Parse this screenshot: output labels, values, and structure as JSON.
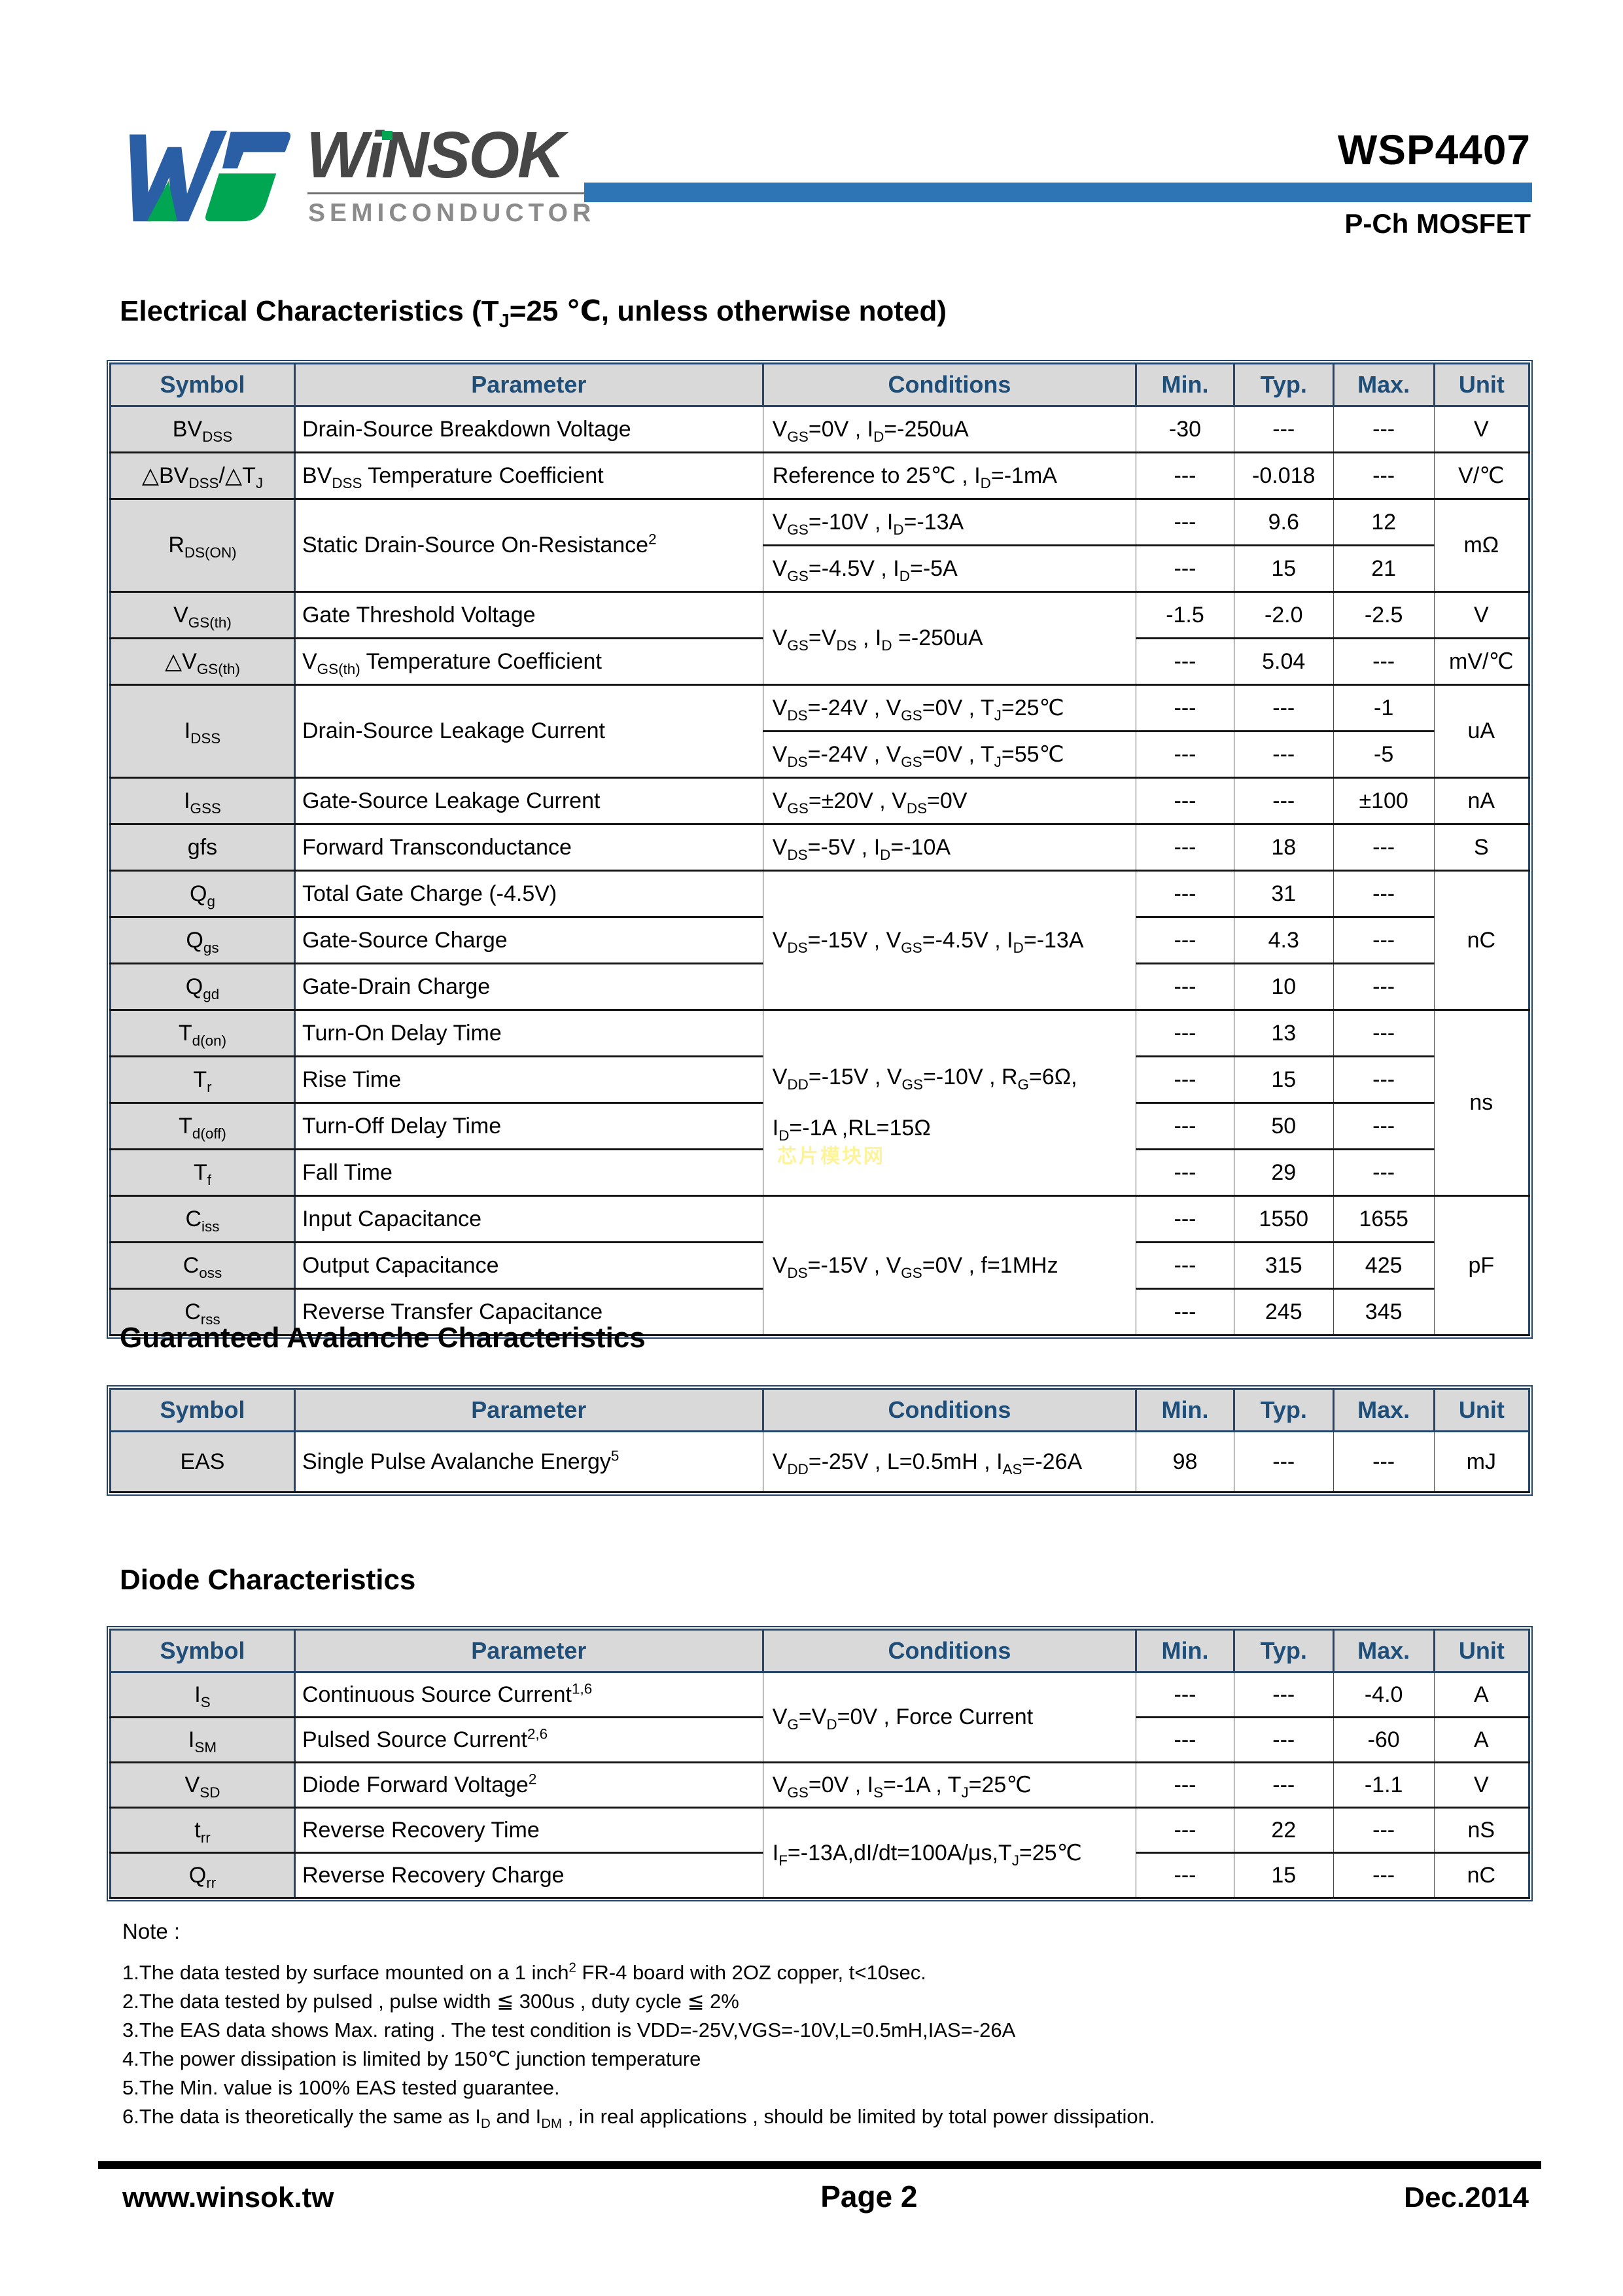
{
  "header": {
    "brand": "WiNSOK",
    "brand_sub": "SEMICONDUCTOR",
    "part_number": "WSP4407",
    "device_type": "P-Ch MOSFET",
    "accent_color": "#2e75b6",
    "logo_colors": {
      "blue": "#2b5fa5",
      "green": "#00a651"
    }
  },
  "watermark": {
    "text": "芯片模块网",
    "color": "#fdf39b"
  },
  "table_columns": [
    "Symbol",
    "Parameter",
    "Conditions",
    "Min.",
    "Typ.",
    "Max.",
    "Unit"
  ],
  "col_widths_pct": [
    13.0,
    33.0,
    26.3,
    6.9,
    7.0,
    7.1,
    6.7
  ],
  "electrical": {
    "title_html": "Electrical Characteristics (T<sub>J</sub>=25 ℃, unless otherwise noted)",
    "rows": [
      [
        {
          "h": "BV<sub>DSS</sub>",
          "cls": "c-sym"
        },
        {
          "h": "Drain-Source Breakdown Voltage",
          "cls": "c-par"
        },
        {
          "h": "V<sub>GS</sub>=0V , I<sub>D</sub>=-250uA",
          "cls": "c-con"
        },
        {
          "h": "-30",
          "cls": "c-num"
        },
        {
          "h": "---",
          "cls": "c-num"
        },
        {
          "h": "---",
          "cls": "c-num"
        },
        {
          "h": "V",
          "cls": "c-unit"
        }
      ],
      [
        {
          "h": "△BV<sub>DSS</sub>/△T<sub>J</sub>",
          "cls": "c-sym"
        },
        {
          "h": "BV<sub>DSS</sub> Temperature Coefficient",
          "cls": "c-par"
        },
        {
          "h": "Reference to 25℃ , I<sub>D</sub>=-1mA",
          "cls": "c-con"
        },
        {
          "h": "---",
          "cls": "c-num"
        },
        {
          "h": "-0.018",
          "cls": "c-num"
        },
        {
          "h": "---",
          "cls": "c-num"
        },
        {
          "h": "V/℃",
          "cls": "c-unit"
        }
      ],
      [
        {
          "h": "R<sub>DS(ON)</sub>",
          "cls": "c-sym",
          "rs": 2
        },
        {
          "h": "Static Drain-Source On-Resistance<sup>2</sup>",
          "cls": "c-par",
          "rs": 2
        },
        {
          "h": "V<sub>GS</sub>=-10V , I<sub>D</sub>=-13A",
          "cls": "c-con"
        },
        {
          "h": "---",
          "cls": "c-num"
        },
        {
          "h": "9.6",
          "cls": "c-num"
        },
        {
          "h": "12",
          "cls": "c-num"
        },
        {
          "h": "mΩ",
          "cls": "c-unit",
          "rs": 2
        }
      ],
      [
        {
          "h": "V<sub>GS</sub>=-4.5V , I<sub>D</sub>=-5A",
          "cls": "c-con"
        },
        {
          "h": "---",
          "cls": "c-num"
        },
        {
          "h": "15",
          "cls": "c-num"
        },
        {
          "h": "21",
          "cls": "c-num"
        }
      ],
      [
        {
          "h": "V<sub>GS(th)</sub>",
          "cls": "c-sym"
        },
        {
          "h": "Gate Threshold Voltage",
          "cls": "c-par"
        },
        {
          "h": "V<sub>GS</sub>=V<sub>DS</sub> , I<sub>D</sub> =-250uA",
          "cls": "c-con",
          "rs": 2
        },
        {
          "h": "-1.5",
          "cls": "c-num"
        },
        {
          "h": "-2.0",
          "cls": "c-num"
        },
        {
          "h": "-2.5",
          "cls": "c-num"
        },
        {
          "h": "V",
          "cls": "c-unit"
        }
      ],
      [
        {
          "h": "△V<sub>GS(th)</sub>",
          "cls": "c-sym"
        },
        {
          "h": "V<sub>GS(th)</sub> Temperature Coefficient",
          "cls": "c-par"
        },
        {
          "h": "---",
          "cls": "c-num"
        },
        {
          "h": "5.04",
          "cls": "c-num"
        },
        {
          "h": "---",
          "cls": "c-num"
        },
        {
          "h": "mV/℃",
          "cls": "c-unit"
        }
      ],
      [
        {
          "h": "I<sub>DSS</sub>",
          "cls": "c-sym",
          "rs": 2
        },
        {
          "h": "Drain-Source Leakage Current",
          "cls": "c-par",
          "rs": 2
        },
        {
          "h": "V<sub>DS</sub>=-24V , V<sub>GS</sub>=0V , T<sub>J</sub>=25℃",
          "cls": "c-con"
        },
        {
          "h": "---",
          "cls": "c-num"
        },
        {
          "h": "---",
          "cls": "c-num"
        },
        {
          "h": "-1",
          "cls": "c-num"
        },
        {
          "h": "uA",
          "cls": "c-unit",
          "rs": 2
        }
      ],
      [
        {
          "h": "V<sub>DS</sub>=-24V , V<sub>GS</sub>=0V , T<sub>J</sub>=55℃",
          "cls": "c-con"
        },
        {
          "h": "---",
          "cls": "c-num"
        },
        {
          "h": "---",
          "cls": "c-num"
        },
        {
          "h": "-5",
          "cls": "c-num"
        }
      ],
      [
        {
          "h": "I<sub>GSS</sub>",
          "cls": "c-sym"
        },
        {
          "h": "Gate-Source Leakage Current",
          "cls": "c-par"
        },
        {
          "h": "V<sub>GS</sub>=±20V , V<sub>DS</sub>=0V",
          "cls": "c-con"
        },
        {
          "h": "---",
          "cls": "c-num"
        },
        {
          "h": "---",
          "cls": "c-num"
        },
        {
          "h": "±100",
          "cls": "c-num"
        },
        {
          "h": "nA",
          "cls": "c-unit"
        }
      ],
      [
        {
          "h": "gfs",
          "cls": "c-sym"
        },
        {
          "h": "Forward Transconductance",
          "cls": "c-par"
        },
        {
          "h": "V<sub>DS</sub>=-5V , I<sub>D</sub>=-10A",
          "cls": "c-con"
        },
        {
          "h": "---",
          "cls": "c-num"
        },
        {
          "h": "18",
          "cls": "c-num"
        },
        {
          "h": "---",
          "cls": "c-num"
        },
        {
          "h": "S",
          "cls": "c-unit"
        }
      ],
      [
        {
          "h": "Q<sub>g</sub>",
          "cls": "c-sym"
        },
        {
          "h": "Total Gate Charge (-4.5V)",
          "cls": "c-par"
        },
        {
          "h": "V<sub>DS</sub>=-15V , V<sub>GS</sub>=-4.5V , I<sub>D</sub>=-13A",
          "cls": "c-con",
          "rs": 3
        },
        {
          "h": "---",
          "cls": "c-num"
        },
        {
          "h": "31",
          "cls": "c-num"
        },
        {
          "h": "---",
          "cls": "c-num"
        },
        {
          "h": "nC",
          "cls": "c-unit",
          "rs": 3
        }
      ],
      [
        {
          "h": "Q<sub>gs</sub>",
          "cls": "c-sym"
        },
        {
          "h": "Gate-Source Charge",
          "cls": "c-par"
        },
        {
          "h": "---",
          "cls": "c-num"
        },
        {
          "h": "4.3",
          "cls": "c-num"
        },
        {
          "h": "---",
          "cls": "c-num"
        }
      ],
      [
        {
          "h": "Q<sub>gd</sub>",
          "cls": "c-sym"
        },
        {
          "h": "Gate-Drain Charge",
          "cls": "c-par"
        },
        {
          "h": "---",
          "cls": "c-num"
        },
        {
          "h": "10",
          "cls": "c-num"
        },
        {
          "h": "---",
          "cls": "c-num"
        }
      ],
      [
        {
          "h": "T<sub>d(on)</sub>",
          "cls": "c-sym"
        },
        {
          "h": "Turn-On Delay Time",
          "cls": "c-par"
        },
        {
          "h": "V<sub>DD</sub>=-15V , V<sub>GS</sub>=-10V , R<sub>G</sub>=6Ω,<br><br>I<sub>D</sub>=-1A ,RL=15Ω",
          "cls": "c-con",
          "rs": 4
        },
        {
          "h": "---",
          "cls": "c-num"
        },
        {
          "h": "13",
          "cls": "c-num"
        },
        {
          "h": "---",
          "cls": "c-num"
        },
        {
          "h": "ns",
          "cls": "c-unit",
          "rs": 4
        }
      ],
      [
        {
          "h": "T<sub>r</sub>",
          "cls": "c-sym"
        },
        {
          "h": "Rise Time",
          "cls": "c-par"
        },
        {
          "h": "---",
          "cls": "c-num"
        },
        {
          "h": "15",
          "cls": "c-num"
        },
        {
          "h": "---",
          "cls": "c-num"
        }
      ],
      [
        {
          "h": "T<sub>d(off)</sub>",
          "cls": "c-sym"
        },
        {
          "h": "Turn-Off Delay Time",
          "cls": "c-par"
        },
        {
          "h": "---",
          "cls": "c-num"
        },
        {
          "h": "50",
          "cls": "c-num"
        },
        {
          "h": "---",
          "cls": "c-num"
        }
      ],
      [
        {
          "h": "T<sub>f</sub>",
          "cls": "c-sym"
        },
        {
          "h": "Fall Time",
          "cls": "c-par"
        },
        {
          "h": "---",
          "cls": "c-num"
        },
        {
          "h": "29",
          "cls": "c-num"
        },
        {
          "h": "---",
          "cls": "c-num"
        }
      ],
      [
        {
          "h": "C<sub>iss</sub>",
          "cls": "c-sym"
        },
        {
          "h": "Input Capacitance",
          "cls": "c-par"
        },
        {
          "h": "V<sub>DS</sub>=-15V , V<sub>GS</sub>=0V , f=1MHz",
          "cls": "c-con",
          "rs": 3
        },
        {
          "h": "---",
          "cls": "c-num"
        },
        {
          "h": "1550",
          "cls": "c-num"
        },
        {
          "h": "1655",
          "cls": "c-num"
        },
        {
          "h": "pF",
          "cls": "c-unit",
          "rs": 3
        }
      ],
      [
        {
          "h": "C<sub>oss</sub>",
          "cls": "c-sym"
        },
        {
          "h": "Output Capacitance",
          "cls": "c-par"
        },
        {
          "h": "---",
          "cls": "c-num"
        },
        {
          "h": "315",
          "cls": "c-num"
        },
        {
          "h": "425",
          "cls": "c-num"
        }
      ],
      [
        {
          "h": "C<sub>rss</sub>",
          "cls": "c-sym"
        },
        {
          "h": "Reverse Transfer Capacitance",
          "cls": "c-par"
        },
        {
          "h": "---",
          "cls": "c-num"
        },
        {
          "h": "245",
          "cls": "c-num"
        },
        {
          "h": "345",
          "cls": "c-num"
        }
      ]
    ]
  },
  "avalanche": {
    "title": "Guaranteed Avalanche Characteristics",
    "rows": [
      [
        {
          "h": "EAS",
          "cls": "c-sym"
        },
        {
          "h": "Single Pulse Avalanche Energy<sup>5</sup>",
          "cls": "c-par"
        },
        {
          "h": "V<sub>DD</sub>=-25V , L=0.5mH , I<sub>AS</sub>=-26A",
          "cls": "c-con"
        },
        {
          "h": "98",
          "cls": "c-num"
        },
        {
          "h": "---",
          "cls": "c-num"
        },
        {
          "h": "---",
          "cls": "c-num"
        },
        {
          "h": "mJ",
          "cls": "c-unit"
        }
      ]
    ]
  },
  "diode": {
    "title": "Diode Characteristics",
    "rows": [
      [
        {
          "h": "I<sub>S</sub>",
          "cls": "c-sym"
        },
        {
          "h": "Continuous Source Current<sup>1,6</sup>",
          "cls": "c-par"
        },
        {
          "h": "V<sub>G</sub>=V<sub>D</sub>=0V , Force Current",
          "cls": "c-con",
          "rs": 2
        },
        {
          "h": "---",
          "cls": "c-num"
        },
        {
          "h": "---",
          "cls": "c-num"
        },
        {
          "h": "-4.0",
          "cls": "c-num"
        },
        {
          "h": "A",
          "cls": "c-unit"
        }
      ],
      [
        {
          "h": "I<sub>SM</sub>",
          "cls": "c-sym"
        },
        {
          "h": "Pulsed Source Current<sup>2,6</sup>",
          "cls": "c-par"
        },
        {
          "h": "---",
          "cls": "c-num"
        },
        {
          "h": "---",
          "cls": "c-num"
        },
        {
          "h": "-60",
          "cls": "c-num"
        },
        {
          "h": "A",
          "cls": "c-unit"
        }
      ],
      [
        {
          "h": "V<sub>SD</sub>",
          "cls": "c-sym"
        },
        {
          "h": "Diode Forward Voltage<sup>2</sup>",
          "cls": "c-par"
        },
        {
          "h": "V<sub>GS</sub>=0V , I<sub>S</sub>=-1A , T<sub>J</sub>=25℃",
          "cls": "c-con"
        },
        {
          "h": "---",
          "cls": "c-num"
        },
        {
          "h": "---",
          "cls": "c-num"
        },
        {
          "h": "-1.1",
          "cls": "c-num"
        },
        {
          "h": "V",
          "cls": "c-unit"
        }
      ],
      [
        {
          "h": "t<sub>rr</sub>",
          "cls": "c-sym"
        },
        {
          "h": "Reverse Recovery Time",
          "cls": "c-par"
        },
        {
          "h": "I<sub>F</sub>=-13A,dI/dt=100A/μs,T<sub>J</sub>=25℃",
          "cls": "c-con",
          "rs": 2
        },
        {
          "h": "---",
          "cls": "c-num"
        },
        {
          "h": "22",
          "cls": "c-num"
        },
        {
          "h": "---",
          "cls": "c-num"
        },
        {
          "h": "nS",
          "cls": "c-unit"
        }
      ],
      [
        {
          "h": "Q<sub>rr</sub>",
          "cls": "c-sym"
        },
        {
          "h": "Reverse Recovery Charge",
          "cls": "c-par"
        },
        {
          "h": "---",
          "cls": "c-num"
        },
        {
          "h": "15",
          "cls": "c-num"
        },
        {
          "h": "---",
          "cls": "c-num"
        },
        {
          "h": "nC",
          "cls": "c-unit"
        }
      ]
    ]
  },
  "notes": {
    "label": "Note :",
    "items_html": [
      "1.The data tested by surface mounted on a 1 inch<sup>2</sup> FR-4 board with 2OZ copper, t&lt;10sec.",
      "2.The data tested by pulsed , pulse width ≦ 300us , duty cycle ≦ 2%",
      "3.The EAS data shows Max. rating . The test condition is VDD=-25V,VGS=-10V,L=0.5mH,IAS=-26A",
      "4.The power dissipation is limited by 150℃  junction temperature",
      "5.The Min. value is 100% EAS tested guarantee.",
      "6.The data is theoretically the same as I<sub>D</sub> and I<sub>DM</sub> , in real applications , should be limited by total power dissipation."
    ]
  },
  "footer": {
    "website": "www.winsok.tw",
    "page": "Page 2",
    "date": "Dec.2014"
  }
}
